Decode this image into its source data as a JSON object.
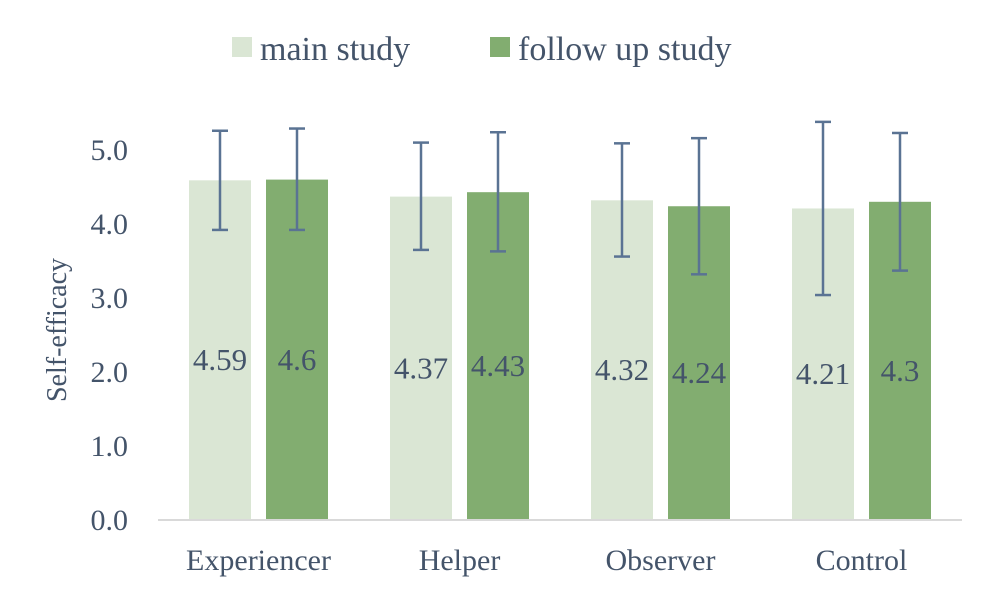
{
  "chart_data": {
    "type": "bar",
    "title": "",
    "xlabel": "",
    "ylabel": "Self-efficacy",
    "ylim": [
      0,
      5.5
    ],
    "yticks": [
      "0.0",
      "1.0",
      "2.0",
      "3.0",
      "4.0",
      "5.0"
    ],
    "grid": false,
    "legend_position": "top-center",
    "categories": [
      "Experiencer",
      "Helper",
      "Observer",
      "Control"
    ],
    "series": [
      {
        "name": "main study",
        "color": "#dae6d4",
        "values": [
          4.59,
          4.37,
          4.32,
          4.21
        ],
        "labels": [
          "4.59",
          "4.37",
          "4.32",
          "4.21"
        ],
        "error_low": [
          3.92,
          3.65,
          3.56,
          3.04
        ],
        "error_high": [
          5.26,
          5.1,
          5.09,
          5.38
        ]
      },
      {
        "name": "follow up study",
        "color": "#82ad70",
        "values": [
          4.6,
          4.43,
          4.24,
          4.3
        ],
        "labels": [
          "4.6",
          "4.43",
          "4.24",
          "4.3"
        ],
        "error_low": [
          3.92,
          3.63,
          3.32,
          3.37
        ],
        "error_high": [
          5.29,
          5.24,
          5.16,
          5.23
        ]
      }
    ],
    "error_bar_color": "#5a7393",
    "axis_color": "#d9d9d9"
  }
}
